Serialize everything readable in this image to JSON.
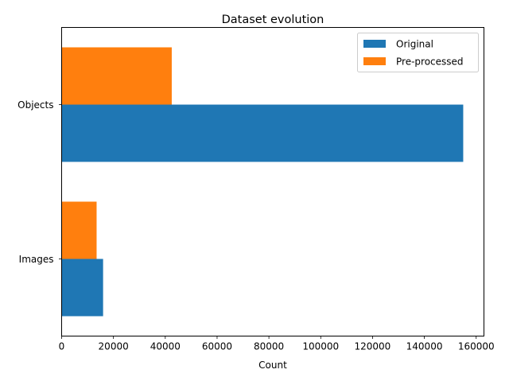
{
  "chart_data": {
    "type": "bar",
    "orientation": "horizontal",
    "title": "Dataset evolution",
    "xlabel": "Count",
    "ylabel": "",
    "categories": [
      "Images",
      "Objects"
    ],
    "series": [
      {
        "name": "Original",
        "values": [
          16000,
          155000
        ],
        "color": "#1f77b4"
      },
      {
        "name": "Pre-processed",
        "values": [
          13500,
          42500
        ],
        "color": "#ff7f0e"
      }
    ],
    "xlim": [
      0,
      163000
    ],
    "xticks": [
      0,
      20000,
      40000,
      60000,
      80000,
      100000,
      120000,
      140000,
      160000
    ],
    "xtick_labels": [
      "0",
      "20000",
      "40000",
      "60000",
      "80000",
      "100000",
      "120000",
      "140000",
      "160000"
    ],
    "grid": false,
    "legend": "top-right"
  }
}
